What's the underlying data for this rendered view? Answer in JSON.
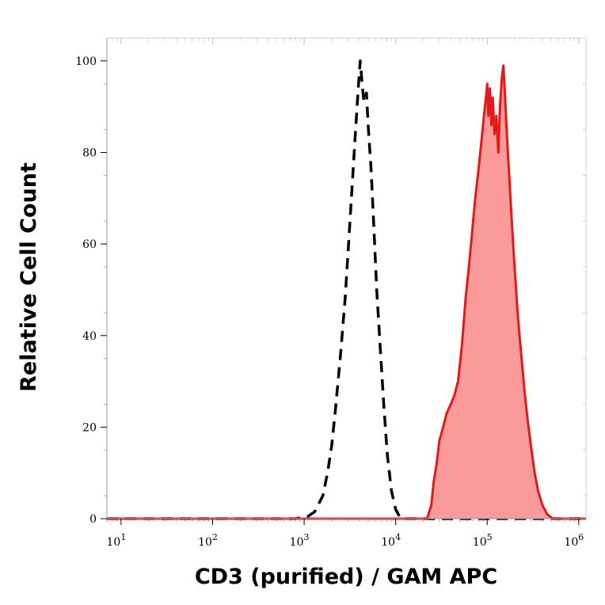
{
  "chart_data": {
    "type": "area",
    "xlabel": "CD3 (purified) / GAM APC",
    "ylabel": "Relative Cell Count",
    "x_scale": "log",
    "xlim": [
      7,
      1200000
    ],
    "ylim": [
      0,
      105
    ],
    "grid": false,
    "x_ticks": [
      {
        "base": "10",
        "exp": "1",
        "value": 10
      },
      {
        "base": "10",
        "exp": "2",
        "value": 100
      },
      {
        "base": "10",
        "exp": "3",
        "value": 1000
      },
      {
        "base": "10",
        "exp": "4",
        "value": 10000
      },
      {
        "base": "10",
        "exp": "5",
        "value": 100000
      },
      {
        "base": "10",
        "exp": "6",
        "value": 1000000
      }
    ],
    "y_ticks": [
      {
        "label": "0",
        "value": 0
      },
      {
        "label": "20",
        "value": 20
      },
      {
        "label": "40",
        "value": 40
      },
      {
        "label": "60",
        "value": 60
      },
      {
        "label": "80",
        "value": 80
      },
      {
        "label": "100",
        "value": 100
      }
    ],
    "series": [
      {
        "style": "dashed",
        "color": "#000000",
        "x": [
          7,
          800,
          1100,
          1300,
          1600,
          1800,
          2000,
          2200,
          2500,
          2800,
          3100,
          3400,
          3700,
          3900,
          4100,
          4300,
          4500,
          4800,
          5000,
          5400,
          5800,
          6200,
          6800,
          7400,
          8100,
          9000,
          10000,
          11000,
          12000,
          15000,
          1200000
        ],
        "y": [
          0,
          0,
          0.5,
          1.5,
          5,
          10,
          16,
          24,
          36,
          48,
          62,
          75,
          87,
          94,
          100,
          95,
          91,
          93,
          86,
          76,
          63,
          50,
          37,
          25,
          14,
          6,
          2,
          0.5,
          0,
          0,
          0
        ]
      },
      {
        "style": "filled",
        "color": "#e31a1a",
        "fill": "#fb9a9a",
        "x": [
          7,
          22000,
          24500,
          26000,
          28000,
          30000,
          33000,
          36000,
          40000,
          44000,
          48000,
          53000,
          58000,
          63000,
          68000,
          74000,
          80000,
          86000,
          92000,
          97000,
          100000,
          103000,
          107000,
          111000,
          115000,
          120000,
          126000,
          132000,
          138000,
          144000,
          150000,
          156000,
          162000,
          168000,
          175000,
          183000,
          192000,
          202000,
          213000,
          225000,
          240000,
          255000,
          275000,
          300000,
          330000,
          360000,
          400000,
          450000,
          520000,
          600000,
          1200000
        ],
        "y": [
          0,
          0,
          3,
          8,
          12,
          17,
          20,
          23,
          25,
          27,
          30,
          38,
          48,
          55,
          62,
          70,
          76,
          82,
          88,
          92,
          95,
          88,
          94,
          86,
          92,
          84,
          88,
          80,
          90,
          96,
          99,
          93,
          86,
          80,
          74,
          67,
          60,
          53,
          46,
          40,
          34,
          28,
          22,
          16,
          10,
          6,
          3,
          1,
          0,
          0,
          0
        ]
      }
    ]
  }
}
